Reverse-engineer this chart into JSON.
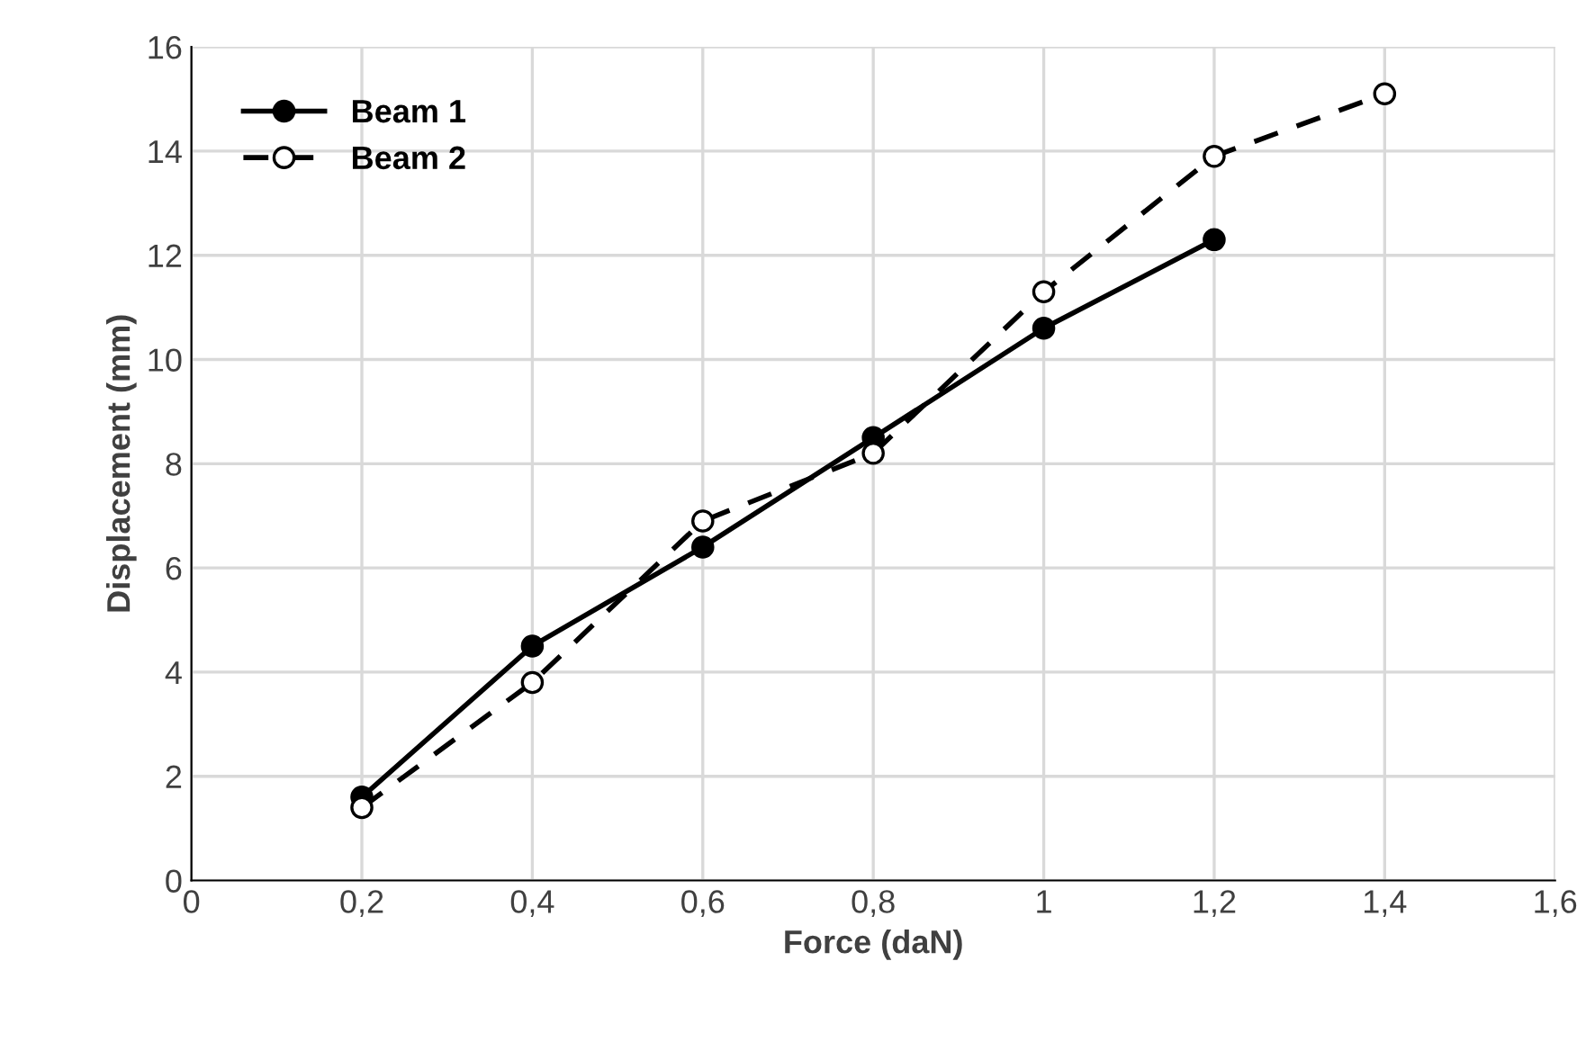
{
  "chart_data": {
    "type": "line",
    "xlabel": "Force (daN)",
    "ylabel": "Displacement (mm)",
    "xlim": [
      0,
      1.6
    ],
    "xticks": [
      0,
      {
        "value": 0.2,
        "label": "0,2"
      },
      {
        "value": 0.4,
        "label": "0,4"
      },
      {
        "value": 0.6,
        "label": "0,6"
      },
      {
        "value": 0.8,
        "label": "0,8"
      },
      1,
      {
        "value": 1.2,
        "label": "1,2"
      },
      {
        "value": 1.4,
        "label": "1,4"
      },
      {
        "value": 1.6,
        "label": "1,6"
      }
    ],
    "ylim": [
      0,
      16
    ],
    "yticks": [
      0,
      2,
      4,
      6,
      8,
      10,
      12,
      14,
      16
    ],
    "grid": true,
    "legend": "top left",
    "marker": "circle",
    "series": [
      {
        "name": "Beam 1",
        "color": "#000000",
        "line_style": "solid",
        "x": [
          0.2,
          0.4,
          0.6,
          0.8,
          1.0,
          1.2
        ],
        "values": [
          1.6,
          4.5,
          6.4,
          8.5,
          10.6,
          12.3
        ]
      },
      {
        "name": "Beam 2",
        "color": "#000000",
        "line_style": "dashed",
        "x": [
          0.2,
          0.4,
          0.6,
          0.8,
          1.0,
          1.2,
          1.4
        ],
        "values": [
          1.4,
          3.8,
          6.9,
          8.2,
          11.3,
          13.9,
          15.1
        ]
      }
    ]
  }
}
